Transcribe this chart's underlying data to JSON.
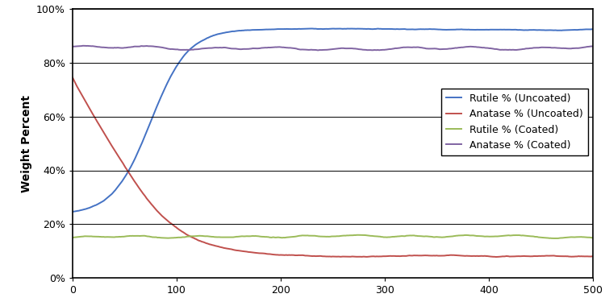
{
  "title": "",
  "xlabel": "",
  "ylabel": "Weight Percent",
  "xlim": [
    0,
    500
  ],
  "ylim": [
    0,
    1.0
  ],
  "yticks": [
    0.0,
    0.2,
    0.4,
    0.6,
    0.8,
    1.0
  ],
  "xticks": [
    0,
    100,
    200,
    300,
    400,
    500
  ],
  "colors": {
    "rutile_uncoated": "#4472C4",
    "anatase_uncoated": "#C0504D",
    "rutile_coated": "#9BBB59",
    "anatase_coated": "#8064A2"
  },
  "legend": {
    "rutile_uncoated": "Rutile % (Uncoated)",
    "anatase_uncoated": "Anatase % (Uncoated)",
    "rutile_coated": "Rutile % (Coated)",
    "anatase_coated": "Anatase % (Coated)"
  },
  "background": "#FFFFFF",
  "linewidth": 1.4
}
